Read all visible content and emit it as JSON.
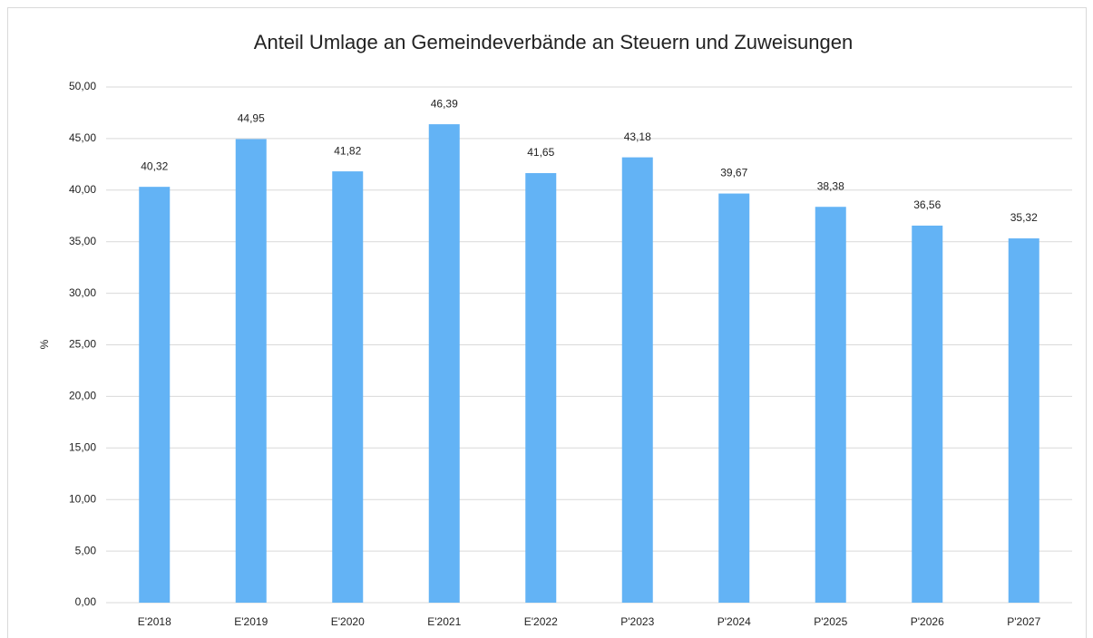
{
  "chart_data": {
    "type": "bar",
    "title": "Anteil Umlage an Gemeindeverbände an Steuern und Zuweisungen",
    "y_label": "%",
    "categories": [
      "E'2018",
      "E'2019",
      "E'2020",
      "E'2021",
      "E'2022",
      "P'2023",
      "P'2024",
      "P'2025",
      "P'2026",
      "P'2027"
    ],
    "values": [
      40.32,
      44.95,
      41.82,
      46.39,
      41.65,
      43.18,
      39.67,
      38.38,
      36.56,
      35.32
    ],
    "value_labels": [
      "40,32",
      "44,95",
      "41,82",
      "46,39",
      "41,65",
      "43,18",
      "39,67",
      "38,38",
      "36,56",
      "35,32"
    ],
    "color": "#63b3f5",
    "ylim": [
      0,
      50
    ],
    "yticks": [
      {
        "value": 0,
        "label": "0,00"
      },
      {
        "value": 5,
        "label": "5,00"
      },
      {
        "value": 10,
        "label": "10,00"
      },
      {
        "value": 15,
        "label": "15,00"
      },
      {
        "value": 20,
        "label": "20,00"
      },
      {
        "value": 25,
        "label": "25,00"
      },
      {
        "value": 30,
        "label": "30,00"
      },
      {
        "value": 35,
        "label": "35,00"
      },
      {
        "value": 40,
        "label": "40,00"
      },
      {
        "value": 45,
        "label": "45,00"
      },
      {
        "value": 50,
        "label": "50,00"
      }
    ],
    "grid": true
  }
}
